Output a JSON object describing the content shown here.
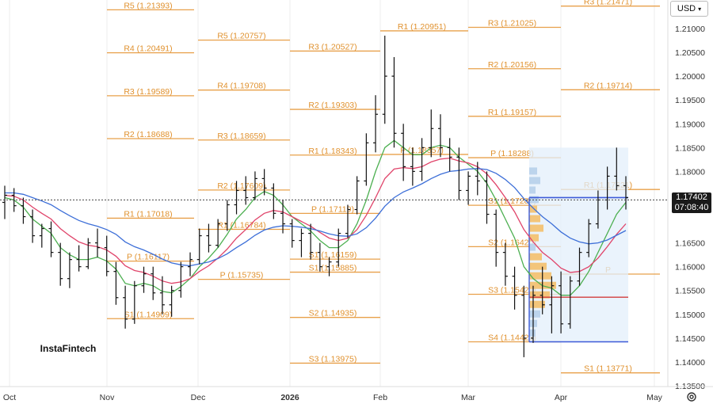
{
  "chart_data": {
    "type": "line",
    "currency": "USD",
    "ylim": [
      1.1353,
      1.216
    ],
    "price_ticks": [
      "1.21000",
      "1.20500",
      "1.20000",
      "1.19500",
      "1.19000",
      "1.18500",
      "1.18000",
      "1.17500",
      "1.16500",
      "1.16000",
      "1.15500",
      "1.15000",
      "1.14500",
      "1.14000",
      "1.13500"
    ],
    "x_labels": [
      "Oct",
      "Nov",
      "Dec",
      "2026",
      "Feb",
      "Mar",
      "Apr",
      "May"
    ],
    "current_price": "1.17402",
    "countdown": "07:08:40",
    "watermark": "InstaFintech",
    "pivot_periods": [
      {
        "levels": [
          {
            "label": "R5 (1.21393)",
            "value": 1.21393
          },
          {
            "label": "R4 (1.20491)",
            "value": 1.20491
          },
          {
            "label": "R3 (1.19589)",
            "value": 1.19589
          },
          {
            "label": "R2 (1.18688)",
            "value": 1.18688
          },
          {
            "label": "R1 (1.17018)",
            "value": 1.17018
          },
          {
            "label": "P (1.16117)",
            "value": 1.16117
          },
          {
            "label": "S1 (1.14909)",
            "value": 1.14909
          }
        ]
      },
      {
        "levels": [
          {
            "label": "R5 (1.20757)",
            "value": 1.20757
          },
          {
            "label": "R4 (1.19708)",
            "value": 1.19708
          },
          {
            "label": "R3 (1.18659)",
            "value": 1.18659
          },
          {
            "label": "R2 (1.17609)",
            "value": 1.17609
          },
          {
            "label": "R1 (1.16784)",
            "value": 1.16784
          },
          {
            "label": "P (1.15735)",
            "value": 1.15735
          }
        ]
      },
      {
        "levels": [
          {
            "label": "R3 (1.20527)",
            "value": 1.20527
          },
          {
            "label": "R2 (1.19303)",
            "value": 1.19303
          },
          {
            "label": "R1 (1.18343)",
            "value": 1.18343
          },
          {
            "label": "P (1.17119)",
            "value": 1.17119
          },
          {
            "label": "S1 (1.16159)",
            "value": 1.16159
          },
          {
            "label": "S1 (1.15885)",
            "value": 1.15885
          },
          {
            "label": "S2 (1.14935)",
            "value": 1.14935
          },
          {
            "label": "S3 (1.13975)",
            "value": 1.13975
          }
        ]
      },
      {
        "levels": [
          {
            "label": "R1 (1.20951)",
            "value": 1.20951
          },
          {
            "label": "P (1.18357)",
            "value": 1.18357
          }
        ]
      },
      {
        "levels": [
          {
            "label": "R3 (1.21025)",
            "value": 1.21025
          },
          {
            "label": "R2 (1.20156)",
            "value": 1.20156
          },
          {
            "label": "R1 (1.19157)",
            "value": 1.19157
          },
          {
            "label": "P (1.18288)",
            "value": 1.18288
          },
          {
            "label": "S1 (1.17289)",
            "value": 1.17289
          },
          {
            "label": "S2 (1.16420)",
            "value": 1.1642
          },
          {
            "label": "S3 (1.15421)",
            "value": 1.15421
          },
          {
            "label": "S4 (1.14423)",
            "value": 1.14423
          }
        ]
      },
      {
        "levels": [
          {
            "label": "R3 (1.21471)",
            "value": 1.21471
          },
          {
            "label": "R2 (1.19714)",
            "value": 1.19714
          },
          {
            "label": "R1 (1.17621)",
            "value": 1.17621
          },
          {
            "label": "P",
            "value": 1.15845
          },
          {
            "label": "S1 (1.13771)",
            "value": 1.13771
          }
        ]
      }
    ],
    "candles": [
      [
        1.1735,
        1.177,
        1.17,
        1.175
      ],
      [
        1.175,
        1.1765,
        1.1715,
        1.1728
      ],
      [
        1.1728,
        1.1745,
        1.169,
        1.1705
      ],
      [
        1.1705,
        1.172,
        1.165,
        1.1665
      ],
      [
        1.1665,
        1.169,
        1.164,
        1.168
      ],
      [
        1.168,
        1.1695,
        1.162,
        1.163
      ],
      [
        1.163,
        1.165,
        1.156,
        1.1575
      ],
      [
        1.1575,
        1.163,
        1.1555,
        1.1615
      ],
      [
        1.1615,
        1.1645,
        1.159,
        1.16
      ],
      [
        1.16,
        1.166,
        1.1595,
        1.165
      ],
      [
        1.165,
        1.168,
        1.162,
        1.164
      ],
      [
        1.164,
        1.1665,
        1.158,
        1.159
      ],
      [
        1.159,
        1.161,
        1.152,
        1.1535
      ],
      [
        1.1535,
        1.156,
        1.147,
        1.149
      ],
      [
        1.149,
        1.157,
        1.148,
        1.156
      ],
      [
        1.156,
        1.16,
        1.1545,
        1.1585
      ],
      [
        1.1585,
        1.16,
        1.153,
        1.1545
      ],
      [
        1.1545,
        1.158,
        1.15,
        1.152
      ],
      [
        1.152,
        1.156,
        1.1495,
        1.155
      ],
      [
        1.155,
        1.161,
        1.1535,
        1.16
      ],
      [
        1.16,
        1.163,
        1.158,
        1.1615
      ],
      [
        1.1615,
        1.168,
        1.1605,
        1.1665
      ],
      [
        1.1665,
        1.169,
        1.163,
        1.1645
      ],
      [
        1.1645,
        1.17,
        1.164,
        1.169
      ],
      [
        1.169,
        1.174,
        1.1675,
        1.173
      ],
      [
        1.173,
        1.178,
        1.171,
        1.176
      ],
      [
        1.176,
        1.179,
        1.173,
        1.1745
      ],
      [
        1.1745,
        1.18,
        1.174,
        1.1785
      ],
      [
        1.1785,
        1.1805,
        1.175,
        1.1765
      ],
      [
        1.1765,
        1.1775,
        1.17,
        1.1712
      ],
      [
        1.1712,
        1.174,
        1.167,
        1.169
      ],
      [
        1.169,
        1.17,
        1.164,
        1.1655
      ],
      [
        1.1655,
        1.168,
        1.162,
        1.167
      ],
      [
        1.167,
        1.169,
        1.1615,
        1.163
      ],
      [
        1.163,
        1.165,
        1.159,
        1.16
      ],
      [
        1.16,
        1.162,
        1.158,
        1.161
      ],
      [
        1.161,
        1.168,
        1.16,
        1.167
      ],
      [
        1.167,
        1.173,
        1.166,
        1.172
      ],
      [
        1.172,
        1.179,
        1.171,
        1.178
      ],
      [
        1.178,
        1.188,
        1.177,
        1.186
      ],
      [
        1.186,
        1.196,
        1.184,
        1.192
      ],
      [
        1.192,
        1.2085,
        1.19,
        1.2
      ],
      [
        1.2,
        1.204,
        1.185,
        1.188
      ],
      [
        1.188,
        1.19,
        1.178,
        1.181
      ],
      [
        1.181,
        1.185,
        1.177,
        1.18
      ],
      [
        1.18,
        1.187,
        1.178,
        1.185
      ],
      [
        1.185,
        1.193,
        1.183,
        1.189
      ],
      [
        1.189,
        1.192,
        1.183,
        1.185
      ],
      [
        1.185,
        1.187,
        1.18,
        1.183
      ],
      [
        1.183,
        1.185,
        1.174,
        1.176
      ],
      [
        1.176,
        1.18,
        1.173,
        1.179
      ],
      [
        1.179,
        1.182,
        1.175,
        1.178
      ],
      [
        1.178,
        1.18,
        1.169,
        1.171
      ],
      [
        1.171,
        1.172,
        1.16,
        1.163
      ],
      [
        1.163,
        1.165,
        1.156,
        1.158
      ],
      [
        1.158,
        1.16,
        1.151,
        1.154
      ],
      [
        1.154,
        1.156,
        1.141,
        1.145
      ],
      [
        1.145,
        1.156,
        1.144,
        1.154
      ],
      [
        1.154,
        1.16,
        1.15,
        1.152
      ],
      [
        1.152,
        1.158,
        1.146,
        1.156
      ],
      [
        1.156,
        1.159,
        1.146,
        1.148
      ],
      [
        1.148,
        1.158,
        1.147,
        1.157
      ],
      [
        1.157,
        1.164,
        1.156,
        1.163
      ],
      [
        1.163,
        1.17,
        1.162,
        1.169
      ],
      [
        1.169,
        1.176,
        1.168,
        1.174
      ],
      [
        1.174,
        1.181,
        1.172,
        1.179
      ],
      [
        1.179,
        1.185,
        1.176,
        1.177
      ],
      [
        1.177,
        1.179,
        1.172,
        1.1745
      ]
    ],
    "ma_series": [
      {
        "color": "#4caf50",
        "values": [
          1.1745,
          1.174,
          1.1725,
          1.17,
          1.1685,
          1.167,
          1.164,
          1.1625,
          1.1615,
          1.1615,
          1.162,
          1.1612,
          1.1595,
          1.1565,
          1.156,
          1.1565,
          1.156,
          1.1548,
          1.1545,
          1.1558,
          1.1575,
          1.16,
          1.1618,
          1.164,
          1.1668,
          1.17,
          1.172,
          1.1745,
          1.1758,
          1.175,
          1.173,
          1.1705,
          1.169,
          1.1675,
          1.1655,
          1.164,
          1.164,
          1.1655,
          1.169,
          1.174,
          1.18,
          1.185,
          1.1865,
          1.185,
          1.1835,
          1.1835,
          1.185,
          1.1855,
          1.185,
          1.183,
          1.1815,
          1.18,
          1.1775,
          1.174,
          1.17,
          1.166,
          1.16,
          1.1575,
          1.156,
          1.1555,
          1.154,
          1.154,
          1.156,
          1.159,
          1.163,
          1.167,
          1.171,
          1.1735
        ]
      },
      {
        "color": "#e0446a",
        "values": [
          1.175,
          1.1748,
          1.174,
          1.1725,
          1.1712,
          1.17,
          1.168,
          1.1665,
          1.1652,
          1.1645,
          1.1642,
          1.1635,
          1.1622,
          1.1602,
          1.1592,
          1.1588,
          1.158,
          1.157,
          1.1565,
          1.1568,
          1.1575,
          1.159,
          1.1602,
          1.1618,
          1.1637,
          1.166,
          1.1678,
          1.1698,
          1.1712,
          1.1718,
          1.1715,
          1.1705,
          1.1695,
          1.1685,
          1.1672,
          1.166,
          1.1655,
          1.166,
          1.1678,
          1.1708,
          1.1745,
          1.1785,
          1.1805,
          1.1808,
          1.1806,
          1.181,
          1.182,
          1.1826,
          1.1828,
          1.1822,
          1.1818,
          1.181,
          1.1795,
          1.1772,
          1.1745,
          1.1715,
          1.1678,
          1.1652,
          1.163,
          1.1615,
          1.1597,
          1.1588,
          1.159,
          1.16,
          1.1618,
          1.1642,
          1.1668,
          1.169
        ]
      },
      {
        "color": "#3d6fd8",
        "values": [
          1.1755,
          1.1755,
          1.1752,
          1.1745,
          1.1738,
          1.173,
          1.1718,
          1.1707,
          1.1697,
          1.169,
          1.1685,
          1.1678,
          1.1668,
          1.1652,
          1.1642,
          1.1635,
          1.1626,
          1.1616,
          1.1608,
          1.1604,
          1.1602,
          1.1606,
          1.161,
          1.1617,
          1.1627,
          1.164,
          1.1652,
          1.1666,
          1.1677,
          1.1683,
          1.1686,
          1.1685,
          1.1683,
          1.168,
          1.1675,
          1.1669,
          1.1665,
          1.1664,
          1.1669,
          1.1682,
          1.1702,
          1.1727,
          1.1745,
          1.1757,
          1.1765,
          1.1774,
          1.1785,
          1.1794,
          1.18,
          1.1802,
          1.1805,
          1.1806,
          1.1804,
          1.1796,
          1.1783,
          1.1766,
          1.1743,
          1.1723,
          1.1705,
          1.169,
          1.1673,
          1.166,
          1.1652,
          1.1648,
          1.165,
          1.1656,
          1.1666,
          1.1676
        ]
      }
    ],
    "volume_profile": [
      {
        "price": 1.18,
        "width": 10,
        "color": "#bcd4ec"
      },
      {
        "price": 1.178,
        "width": 14,
        "color": "#bcd4ec"
      },
      {
        "price": 1.176,
        "width": 8,
        "color": "#bcd4ec"
      },
      {
        "price": 1.174,
        "width": 12,
        "color": "#bcd4ec"
      },
      {
        "price": 1.172,
        "width": 10,
        "color": "#f3c57a"
      },
      {
        "price": 1.17,
        "width": 14,
        "color": "#f3c57a"
      },
      {
        "price": 1.168,
        "width": 18,
        "color": "#f3c57a"
      },
      {
        "price": 1.166,
        "width": 12,
        "color": "#f3c57a"
      },
      {
        "price": 1.164,
        "width": 8,
        "color": "#bcd4ec"
      },
      {
        "price": 1.162,
        "width": 16,
        "color": "#f3c57a"
      },
      {
        "price": 1.16,
        "width": 22,
        "color": "#f3c57a"
      },
      {
        "price": 1.158,
        "width": 28,
        "color": "#f3c57a"
      },
      {
        "price": 1.156,
        "width": 34,
        "color": "#f3c57a"
      },
      {
        "price": 1.154,
        "width": 26,
        "color": "#f3c57a"
      },
      {
        "price": 1.152,
        "width": 20,
        "color": "#f3c57a"
      },
      {
        "price": 1.15,
        "width": 14,
        "color": "#bcd4ec"
      },
      {
        "price": 1.148,
        "width": 10,
        "color": "#bcd4ec"
      },
      {
        "price": 1.146,
        "width": 8,
        "color": "#bcd4ec"
      }
    ],
    "profile_box": {
      "high": 1.185,
      "low": 1.1442,
      "top_line": 1.1745,
      "bottom_line": 1.14423
    }
  }
}
